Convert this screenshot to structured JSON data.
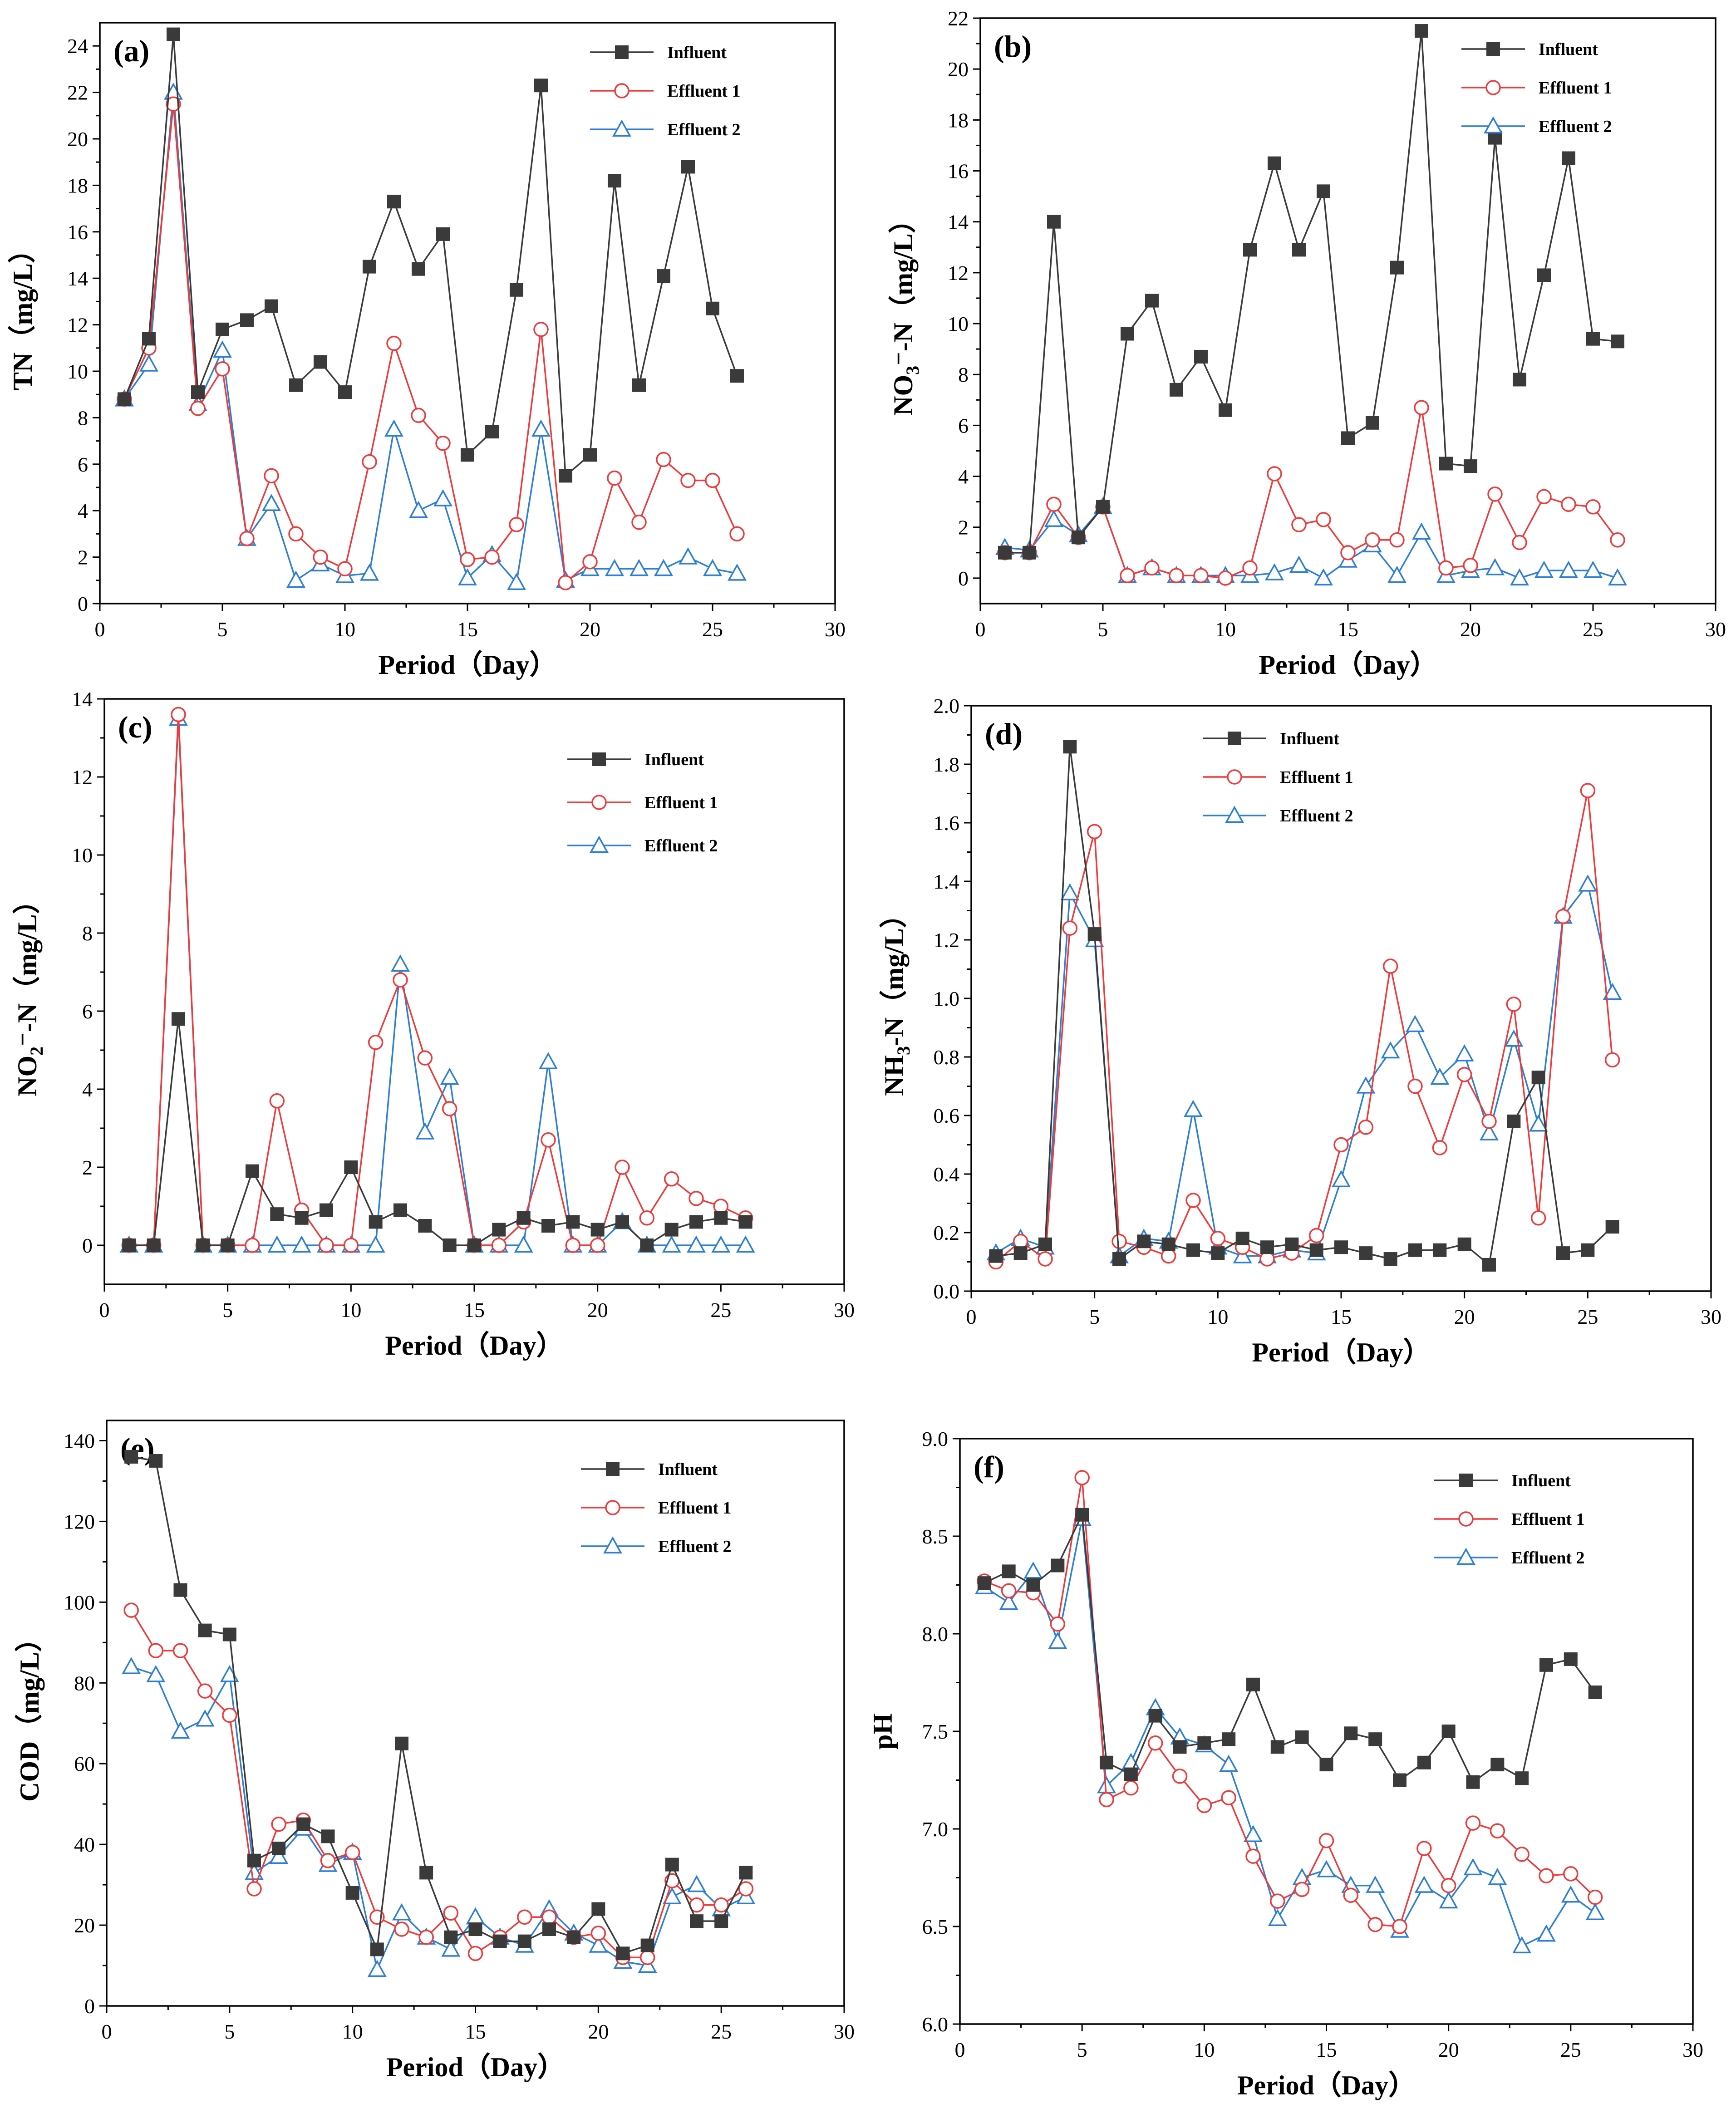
{
  "chart_data": [
    {
      "type": "line",
      "panel_label": "(a)",
      "ylabel": "TN（mg/L）",
      "xlabel": "Period（Day）",
      "xlim": [
        0,
        30
      ],
      "ylim": [
        0,
        25
      ],
      "xticks": [
        0,
        5,
        10,
        15,
        20,
        25,
        30
      ],
      "yticks": [
        0,
        2,
        4,
        6,
        8,
        10,
        12,
        14,
        16,
        18,
        20,
        22,
        24
      ],
      "legend_position": "top-right",
      "x": [
        1,
        2,
        3,
        4,
        5,
        6,
        7,
        8,
        9,
        10,
        11,
        12,
        13,
        14,
        15,
        16,
        17,
        18,
        19,
        20,
        21,
        22,
        23,
        24,
        25,
        26
      ],
      "series": [
        {
          "name": "Influent",
          "color": "#3a3a3a",
          "marker": "square",
          "values": [
            8.8,
            11.4,
            24.5,
            9.1,
            11.8,
            12.2,
            12.8,
            9.4,
            10.4,
            9.1,
            14.5,
            17.3,
            14.4,
            15.9,
            6.4,
            7.4,
            13.5,
            22.3,
            5.5,
            6.4,
            18.2,
            9.4,
            14.1,
            18.8,
            12.7,
            9.8
          ]
        },
        {
          "name": "Effluent 1",
          "color": "#ee3b3b",
          "marker": "circle",
          "values": [
            8.8,
            11.0,
            21.5,
            8.4,
            10.1,
            2.8,
            5.5,
            3.0,
            2.0,
            1.5,
            6.1,
            11.2,
            8.1,
            6.9,
            1.9,
            2.0,
            3.4,
            11.8,
            0.9,
            1.8,
            5.4,
            3.5,
            6.2,
            5.3,
            5.3,
            3.0
          ]
        },
        {
          "name": "Effluent 2",
          "color": "#2d7fd6",
          "marker": "triangle",
          "values": [
            8.8,
            10.3,
            22.0,
            8.6,
            10.9,
            2.8,
            4.3,
            1.0,
            1.7,
            1.2,
            1.3,
            7.5,
            4.0,
            4.5,
            1.1,
            2.1,
            0.9,
            7.5,
            1.0,
            1.5,
            1.5,
            1.5,
            1.5,
            2.0,
            1.5,
            1.3
          ]
        }
      ]
    },
    {
      "type": "line",
      "panel_label": "(b)",
      "ylabel_parts": [
        "NO",
        "3",
        "⁻-N（mg/L）"
      ],
      "xlabel": "Period（Day）",
      "xlim": [
        0,
        30
      ],
      "ylim": [
        -1,
        22
      ],
      "xticks": [
        0,
        5,
        10,
        15,
        20,
        25,
        30
      ],
      "yticks": [
        0,
        2,
        4,
        6,
        8,
        10,
        12,
        14,
        16,
        18,
        20,
        22
      ],
      "legend_position": "top-right",
      "x": [
        1,
        2,
        3,
        4,
        5,
        6,
        7,
        8,
        9,
        10,
        11,
        12,
        13,
        14,
        15,
        16,
        17,
        18,
        19,
        20,
        21,
        22,
        23,
        24,
        25,
        26
      ],
      "series": [
        {
          "name": "Influent",
          "color": "#3a3a3a",
          "marker": "square",
          "values": [
            1.0,
            1.0,
            14.0,
            1.6,
            2.8,
            9.6,
            10.9,
            7.4,
            8.7,
            6.6,
            12.9,
            16.3,
            12.9,
            15.2,
            5.5,
            6.1,
            12.2,
            21.5,
            4.5,
            4.4,
            17.3,
            7.8,
            11.9,
            16.5,
            9.4,
            9.3
          ]
        },
        {
          "name": "Effluent 1",
          "color": "#ee3b3b",
          "marker": "circle",
          "values": [
            1.0,
            1.0,
            2.9,
            1.6,
            2.8,
            0.1,
            0.4,
            0.1,
            0.1,
            0.0,
            0.4,
            4.1,
            2.1,
            2.3,
            1.0,
            1.5,
            1.5,
            6.7,
            0.4,
            0.5,
            3.3,
            1.4,
            3.2,
            2.9,
            2.8,
            1.5
          ]
        },
        {
          "name": "Effluent 2",
          "color": "#2d7fd6",
          "marker": "triangle",
          "values": [
            1.2,
            1.1,
            2.3,
            1.7,
            2.8,
            0.1,
            0.4,
            0.1,
            0.1,
            0.1,
            0.1,
            0.2,
            0.5,
            0.0,
            0.7,
            1.3,
            0.1,
            1.8,
            0.1,
            0.3,
            0.4,
            0.0,
            0.3,
            0.3,
            0.3,
            0.0
          ]
        }
      ]
    },
    {
      "type": "line",
      "panel_label": "(c)",
      "ylabel_parts": [
        "NO",
        "2",
        "⁻-N（mg/L）"
      ],
      "xlabel": "Period（Day）",
      "xlim": [
        0,
        30
      ],
      "ylim": [
        -1,
        14
      ],
      "xticks": [
        0,
        5,
        10,
        15,
        20,
        25,
        30
      ],
      "yticks": [
        0,
        2,
        4,
        6,
        8,
        10,
        12,
        14
      ],
      "legend_position": "top-right",
      "x": [
        1,
        2,
        3,
        4,
        5,
        6,
        7,
        8,
        9,
        10,
        11,
        12,
        13,
        14,
        15,
        16,
        17,
        18,
        19,
        20,
        21,
        22,
        23,
        24,
        25,
        26
      ],
      "series": [
        {
          "name": "Influent",
          "color": "#3a3a3a",
          "marker": "square",
          "values": [
            0.0,
            0.0,
            5.8,
            0.0,
            0.0,
            1.9,
            0.8,
            0.7,
            0.9,
            2.0,
            0.6,
            0.9,
            0.5,
            0.0,
            0.0,
            0.4,
            0.7,
            0.5,
            0.6,
            0.4,
            0.6,
            0.0,
            0.4,
            0.6,
            0.7,
            0.6
          ]
        },
        {
          "name": "Effluent 1",
          "color": "#ee3b3b",
          "marker": "circle",
          "values": [
            0.0,
            0.0,
            13.6,
            0.0,
            0.0,
            0.0,
            3.7,
            0.9,
            0.0,
            0.0,
            5.2,
            6.8,
            4.8,
            3.5,
            0.0,
            0.0,
            0.6,
            2.7,
            0.0,
            0.0,
            2.0,
            0.7,
            1.7,
            1.2,
            1.0,
            0.7
          ]
        },
        {
          "name": "Effluent 2",
          "color": "#2d7fd6",
          "marker": "triangle",
          "values": [
            0.0,
            0.0,
            13.5,
            0.0,
            0.0,
            0.0,
            0.0,
            0.0,
            0.0,
            0.0,
            0.0,
            7.2,
            2.9,
            4.3,
            0.0,
            0.0,
            0.0,
            4.7,
            0.0,
            0.0,
            0.6,
            0.0,
            0.0,
            0.0,
            0.0,
            0.0
          ]
        }
      ]
    },
    {
      "type": "line",
      "panel_label": "(d)",
      "ylabel_parts": [
        "NH",
        "3",
        "-N（mg/L）"
      ],
      "xlabel": "Period（Day）",
      "xlim": [
        0,
        30
      ],
      "ylim": [
        0,
        2.0
      ],
      "xticks": [
        0,
        5,
        10,
        15,
        20,
        25,
        30
      ],
      "yticks": [
        "0.0",
        "0.2",
        "0.4",
        "0.6",
        "0.8",
        "1.0",
        "1.2",
        "1.4",
        "1.6",
        "1.8",
        "2.0"
      ],
      "legend_position": "top-center",
      "x": [
        1,
        2,
        3,
        4,
        5,
        6,
        7,
        8,
        9,
        10,
        11,
        12,
        13,
        14,
        15,
        16,
        17,
        18,
        19,
        20,
        21,
        22,
        23,
        24,
        25,
        26
      ],
      "series": [
        {
          "name": "Influent",
          "color": "#3a3a3a",
          "marker": "square",
          "values": [
            0.12,
            0.13,
            0.16,
            1.86,
            1.22,
            0.11,
            0.17,
            0.16,
            0.14,
            0.13,
            0.18,
            0.15,
            0.16,
            0.14,
            0.15,
            0.13,
            0.11,
            0.14,
            0.14,
            0.16,
            0.09,
            0.58,
            0.73,
            0.13,
            0.14,
            0.22
          ]
        },
        {
          "name": "Effluent 1",
          "color": "#ee3b3b",
          "marker": "circle",
          "values": [
            0.1,
            0.17,
            0.11,
            1.24,
            1.57,
            0.17,
            0.15,
            0.12,
            0.31,
            0.18,
            0.15,
            0.11,
            0.13,
            0.19,
            0.5,
            0.56,
            1.11,
            0.7,
            0.49,
            0.74,
            0.58,
            0.98,
            0.25,
            1.28,
            1.71,
            0.79
          ]
        },
        {
          "name": "Effluent 2",
          "color": "#2d7fd6",
          "marker": "triangle",
          "values": [
            0.13,
            0.18,
            0.15,
            1.36,
            1.2,
            0.12,
            0.18,
            0.17,
            0.62,
            0.15,
            0.12,
            0.12,
            0.14,
            0.13,
            0.38,
            0.7,
            0.82,
            0.91,
            0.73,
            0.81,
            0.54,
            0.86,
            0.57,
            1.28,
            1.39,
            1.02
          ]
        }
      ]
    },
    {
      "type": "line",
      "panel_label": "(e)",
      "ylabel": "COD（mg/L）",
      "xlabel": "Period（Day）",
      "xlim": [
        0,
        30
      ],
      "ylim": [
        0,
        145
      ],
      "xticks": [
        0,
        5,
        10,
        15,
        20,
        25,
        30
      ],
      "yticks": [
        0,
        20,
        40,
        60,
        80,
        100,
        120,
        140
      ],
      "legend_position": "top-right",
      "x": [
        1,
        2,
        3,
        4,
        5,
        6,
        7,
        8,
        9,
        10,
        11,
        12,
        13,
        14,
        15,
        16,
        17,
        18,
        19,
        20,
        21,
        22,
        23,
        24,
        25,
        26
      ],
      "series": [
        {
          "name": "Influent",
          "color": "#3a3a3a",
          "marker": "square",
          "values": [
            136,
            135,
            103,
            93,
            92,
            36,
            39,
            45,
            42,
            28,
            14,
            65,
            33,
            17,
            19,
            16,
            16,
            19,
            17,
            24,
            13,
            15,
            35,
            21,
            21,
            33
          ]
        },
        {
          "name": "Effluent 1",
          "color": "#ee3b3b",
          "marker": "circle",
          "values": [
            98,
            88,
            88,
            78,
            72,
            29,
            45,
            46,
            36,
            38,
            22,
            19,
            17,
            23,
            13,
            17,
            22,
            22,
            17,
            18,
            12,
            12,
            31,
            25,
            25,
            29
          ]
        },
        {
          "name": "Effluent 2",
          "color": "#2d7fd6",
          "marker": "triangle",
          "values": [
            84,
            82,
            68,
            71,
            82,
            33,
            37,
            44,
            35,
            38,
            9,
            23,
            17,
            14,
            22,
            17,
            15,
            24,
            18,
            15,
            11,
            10,
            27,
            30,
            24,
            27
          ]
        }
      ]
    },
    {
      "type": "line",
      "panel_label": "(f)",
      "ylabel": "pH",
      "xlabel": "Period（Day）",
      "xlim": [
        0,
        30
      ],
      "ylim": [
        6.0,
        9.0
      ],
      "xticks": [
        0,
        5,
        10,
        15,
        20,
        25,
        30
      ],
      "yticks": [
        "6.0",
        "6.5",
        "7.0",
        "7.5",
        "8.0",
        "8.5",
        "9.0"
      ],
      "legend_position": "top-right",
      "x": [
        1,
        2,
        3,
        4,
        5,
        6,
        7,
        8,
        9,
        10,
        11,
        12,
        13,
        14,
        15,
        16,
        17,
        18,
        19,
        20,
        21,
        22,
        23,
        24,
        25,
        26
      ],
      "series": [
        {
          "name": "Influent",
          "color": "#3a3a3a",
          "marker": "square",
          "values": [
            8.26,
            8.32,
            8.25,
            8.35,
            8.61,
            7.34,
            7.28,
            7.58,
            7.42,
            7.44,
            7.46,
            7.74,
            7.42,
            7.47,
            7.33,
            7.49,
            7.46,
            7.25,
            7.34,
            7.5,
            7.24,
            7.33,
            7.26,
            7.84,
            7.87,
            7.7
          ]
        },
        {
          "name": "Effluent 1",
          "color": "#ee3b3b",
          "marker": "circle",
          "values": [
            8.27,
            8.22,
            8.21,
            8.05,
            8.8,
            7.15,
            7.21,
            7.44,
            7.27,
            7.12,
            7.16,
            6.86,
            6.63,
            6.69,
            6.94,
            6.66,
            6.51,
            6.5,
            6.9,
            6.71,
            7.03,
            6.99,
            6.87,
            6.76,
            6.77,
            6.65
          ]
        },
        {
          "name": "Effluent 2",
          "color": "#2d7fd6",
          "marker": "triangle",
          "values": [
            8.24,
            8.16,
            8.32,
            7.96,
            8.59,
            7.22,
            7.34,
            7.62,
            7.47,
            7.43,
            7.33,
            6.97,
            6.54,
            6.75,
            6.79,
            6.71,
            6.71,
            6.48,
            6.71,
            6.63,
            6.8,
            6.75,
            6.4,
            6.46,
            6.66,
            6.57
          ]
        }
      ]
    }
  ]
}
